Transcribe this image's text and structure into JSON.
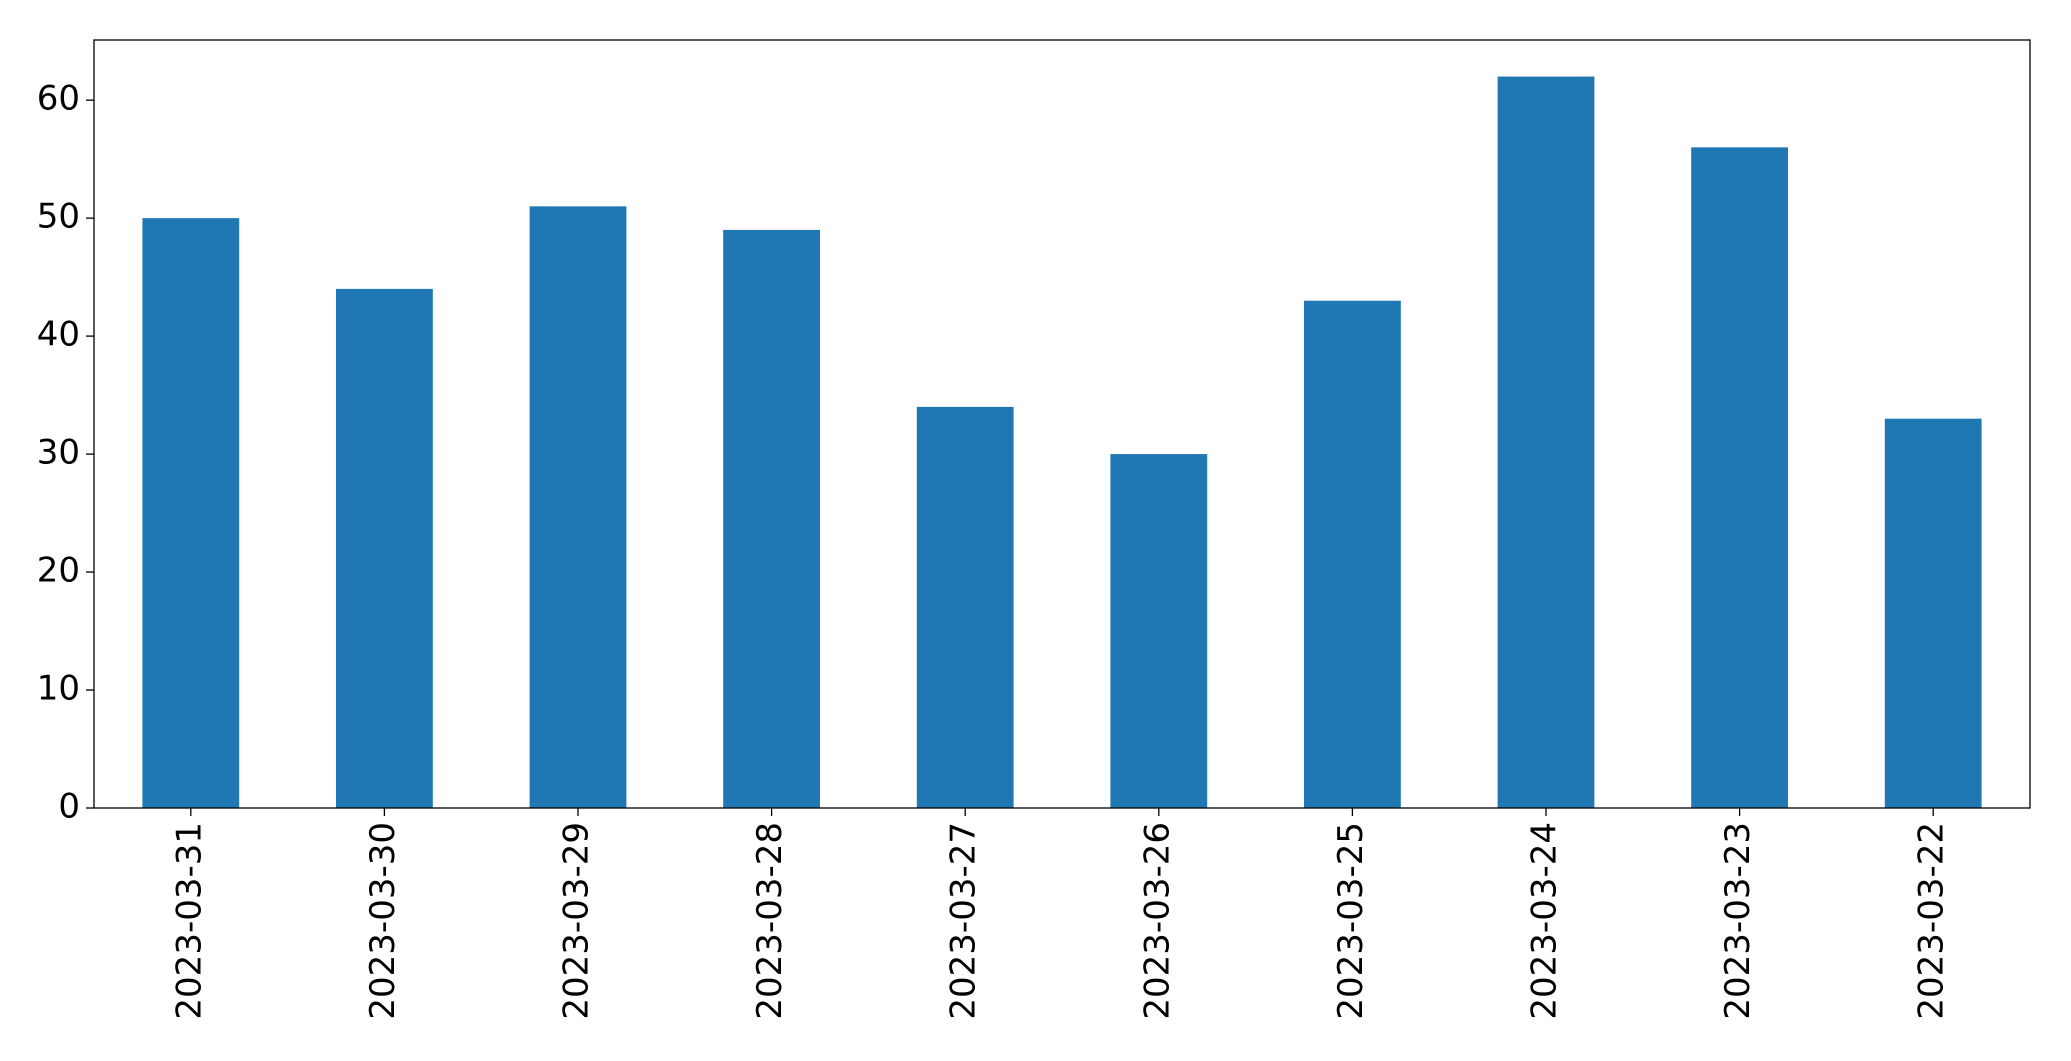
{
  "chart_data": {
    "type": "bar",
    "categories": [
      "2023-03-31",
      "2023-03-30",
      "2023-03-29",
      "2023-03-28",
      "2023-03-27",
      "2023-03-26",
      "2023-03-25",
      "2023-03-24",
      "2023-03-23",
      "2023-03-22"
    ],
    "values": [
      50,
      44,
      51,
      49,
      34,
      30,
      43,
      62,
      56,
      33
    ],
    "color": "#1f77b4",
    "ylim": [
      0,
      65.1
    ],
    "yticks": [
      0,
      10,
      20,
      30,
      40,
      50,
      60
    ],
    "grid": false
  }
}
